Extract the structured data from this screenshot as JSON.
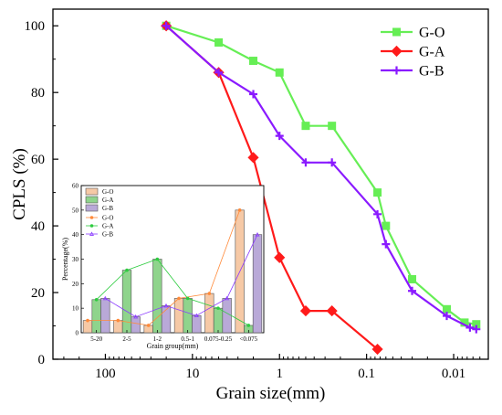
{
  "chart_data": [
    {
      "type": "line",
      "xlabel": "Grain size(mm)",
      "ylabel": "CPLS (%)",
      "x_scale": "log",
      "x_reversed": true,
      "xlim": [
        400,
        0.004
      ],
      "ylim": [
        0,
        105
      ],
      "x_tick_values": [
        100,
        10,
        1,
        0.1,
        0.01
      ],
      "x_tick_labels": [
        "100",
        "10",
        "1",
        "0.1",
        "0.01"
      ],
      "y_tick_values": [
        0,
        20,
        40,
        60,
        80,
        100
      ],
      "y_tick_labels": [
        "0",
        "20",
        "40",
        "60",
        "80",
        "100"
      ],
      "legend_position": "top-right",
      "series": [
        {
          "name": "G-O",
          "color": "#66ee55",
          "marker": "square",
          "points": [
            [
              20,
              100
            ],
            [
              5,
              95
            ],
            [
              2,
              89.5
            ],
            [
              1,
              86
            ],
            [
              0.5,
              70
            ],
            [
              0.25,
              70
            ],
            [
              0.075,
              50
            ],
            [
              0.06,
              40
            ],
            [
              0.03,
              24
            ],
            [
              0.012,
              15
            ],
            [
              0.0075,
              11
            ],
            [
              0.0055,
              10.5
            ]
          ]
        },
        {
          "name": "G-A",
          "color": "#ff1a1a",
          "marker": "diamond",
          "points": [
            [
              20,
              100
            ],
            [
              5,
              86
            ],
            [
              2,
              60.5
            ],
            [
              1,
              30.5
            ],
            [
              0.5,
              14.5
            ],
            [
              0.25,
              14.5
            ],
            [
              0.075,
              3
            ]
          ]
        },
        {
          "name": "G-B",
          "color": "#8a1aff",
          "marker": "plus",
          "points": [
            [
              20,
              100
            ],
            [
              5,
              86
            ],
            [
              2,
              79.5
            ],
            [
              1,
              67
            ],
            [
              0.5,
              59
            ],
            [
              0.25,
              59
            ],
            [
              0.075,
              43.5
            ],
            [
              0.06,
              34.5
            ],
            [
              0.03,
              20.5
            ],
            [
              0.012,
              13
            ],
            [
              0.0065,
              9.5
            ],
            [
              0.0055,
              9
            ]
          ]
        }
      ]
    },
    {
      "type": "bar",
      "xlabel": "Grain group(mm)",
      "ylabel": "Percentage(%)",
      "ylim": [
        0,
        60
      ],
      "y_tick_values": [
        0,
        10,
        20,
        30,
        40,
        50,
        60
      ],
      "y_tick_labels": [
        "0",
        "10",
        "20",
        "30",
        "40",
        "50",
        "60"
      ],
      "categories": [
        "5-20",
        "2-5",
        "1-2",
        "0.5-1",
        "0.075-0.25",
        "<0.075"
      ],
      "legend_position": "top-left",
      "bar_series": [
        {
          "name": "G-O",
          "color": "#f6c9a6",
          "values": [
            5,
            5,
            3,
            14,
            16,
            50
          ]
        },
        {
          "name": "G-A",
          "color": "#8fd48c",
          "values": [
            13.5,
            25.5,
            30,
            14,
            10,
            3
          ]
        },
        {
          "name": "G-B",
          "color": "#b9a9d8",
          "values": [
            14,
            6.5,
            11,
            7,
            14,
            40
          ]
        }
      ],
      "line_series": [
        {
          "name": "G-O",
          "color": "#ff8a3a",
          "marker": "circle",
          "values": [
            5,
            5,
            3,
            14,
            16,
            50
          ]
        },
        {
          "name": "G-A",
          "color": "#2ecc40",
          "marker": "circle",
          "values": [
            13.5,
            25.5,
            30,
            14,
            10,
            3
          ]
        },
        {
          "name": "G-B",
          "color": "#8a3aff",
          "marker": "triangle",
          "values": [
            14,
            6.5,
            11,
            7,
            14,
            40
          ]
        }
      ]
    }
  ]
}
